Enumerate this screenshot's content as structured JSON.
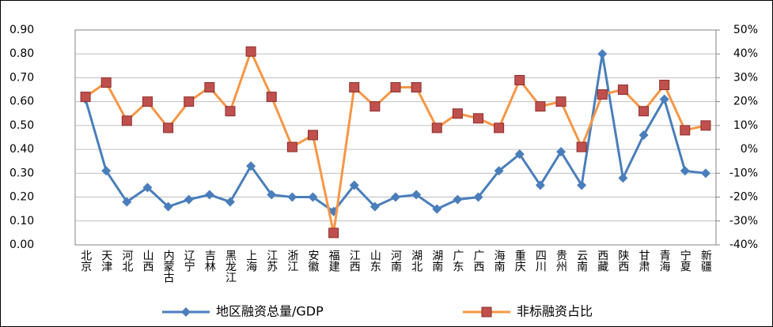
{
  "chart_data": {
    "type": "line",
    "categories": [
      "北京",
      "天津",
      "河北",
      "山西",
      "内蒙古",
      "辽宁",
      "吉林",
      "黑龙江",
      "上海",
      "江苏",
      "浙江",
      "安徽",
      "福建",
      "江西",
      "山东",
      "河南",
      "湖北",
      "湖南",
      "广东",
      "广西",
      "海南",
      "重庆",
      "四川",
      "贵州",
      "云南",
      "西藏",
      "陕西",
      "甘肃",
      "青海",
      "宁夏",
      "新疆"
    ],
    "series": [
      {
        "name": "地区融资总量/GDP",
        "color": "#4a7ebb",
        "marker": "diamond",
        "values": [
          0.61,
          0.31,
          0.18,
          0.24,
          0.16,
          0.19,
          0.21,
          0.18,
          0.33,
          0.21,
          0.2,
          0.2,
          0.14,
          0.25,
          0.16,
          0.2,
          0.21,
          0.15,
          0.19,
          0.2,
          0.31,
          0.38,
          0.25,
          0.39,
          0.25,
          0.8,
          0.28,
          0.46,
          0.61,
          0.31,
          0.3
        ]
      },
      {
        "name": "非标融资占比",
        "color": "#f79646",
        "marker": "square",
        "marker_color": "#c0504d",
        "axis": "y2",
        "values": [
          22,
          28,
          12,
          20,
          9,
          20,
          26,
          16,
          41,
          22,
          1,
          6,
          -35,
          26,
          18,
          26,
          26,
          9,
          15,
          13,
          9,
          29,
          18,
          20,
          1,
          23,
          25,
          16,
          27,
          8,
          10
        ]
      }
    ],
    "ylim": [
      0,
      0.9
    ],
    "yticks": [
      {
        "value": 0,
        "label": "0.00"
      },
      {
        "value": 0.1,
        "label": "0.10"
      },
      {
        "value": 0.2,
        "label": "0.20"
      },
      {
        "value": 0.3,
        "label": "0.30"
      },
      {
        "value": 0.4,
        "label": "0.40"
      },
      {
        "value": 0.5,
        "label": "0.50"
      },
      {
        "value": 0.6,
        "label": "0.60"
      },
      {
        "value": 0.7,
        "label": "0.70"
      },
      {
        "value": 0.8,
        "label": "0.80"
      },
      {
        "value": 0.9,
        "label": "0.90"
      }
    ],
    "y2lim": [
      -40,
      50
    ],
    "y2ticks": [
      {
        "value": -40,
        "label": "-40%"
      },
      {
        "value": -30,
        "label": "-30%"
      },
      {
        "value": -20,
        "label": "-20%"
      },
      {
        "value": -10,
        "label": "-10%"
      },
      {
        "value": 0,
        "label": "0%"
      },
      {
        "value": 10,
        "label": "10%"
      },
      {
        "value": 20,
        "label": "20%"
      },
      {
        "value": 30,
        "label": "30%"
      },
      {
        "value": 40,
        "label": "40%"
      },
      {
        "value": 50,
        "label": "50%"
      }
    ],
    "grid": true,
    "legend": "bottom"
  }
}
